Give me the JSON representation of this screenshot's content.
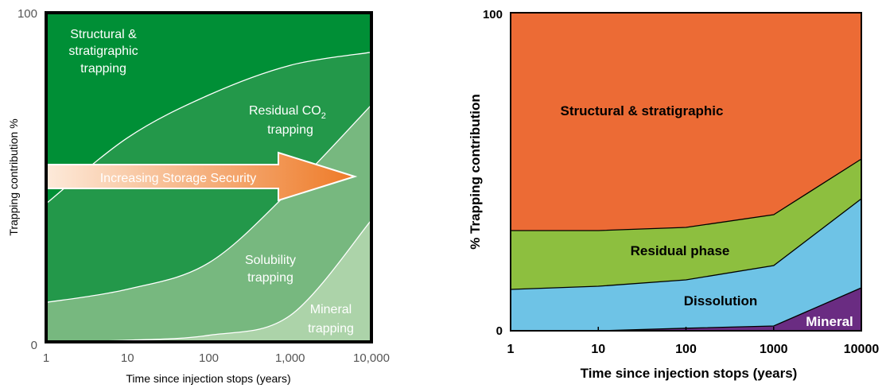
{
  "chart_data": [
    {
      "type": "area",
      "title": "",
      "xlabel": "Time since injection stops (years)",
      "ylabel": "Trapping contribution %",
      "x_scale": "log",
      "x": [
        1,
        10,
        100,
        1000,
        10000
      ],
      "xlim": [
        1,
        10000
      ],
      "ylim": [
        0,
        100
      ],
      "x_tick_labels": [
        "1",
        "10",
        "100",
        "1,000",
        "10,000"
      ],
      "y_tick_labels": [
        "0",
        "100"
      ],
      "stacking": "cumulative boundaries from bottom",
      "series": [
        {
          "name": "Mineral trapping",
          "label_lines": [
            "Mineral",
            "trapping"
          ],
          "x": [
            1,
            10,
            100,
            1000,
            10000
          ],
          "values": [
            0,
            0.5,
            2,
            8,
            37
          ]
        },
        {
          "name": "Solubility trapping",
          "label_lines": [
            "Solubility",
            "trapping"
          ],
          "x": [
            1,
            10,
            100,
            1000,
            10000
          ],
          "values": [
            12,
            16,
            24,
            46,
            72
          ]
        },
        {
          "name": "Residual CO2 trapping",
          "label_lines": [
            "Residual CO",
            "2",
            "trapping"
          ],
          "x": [
            1,
            10,
            100,
            1000,
            10000
          ],
          "values": [
            42,
            62,
            75,
            84,
            88
          ]
        },
        {
          "name": "Structural & stratigraphic trapping",
          "label_lines": [
            "Structural &",
            "stratigraphic",
            "trapping"
          ],
          "x": [
            1,
            10,
            100,
            1000,
            10000
          ],
          "values": [
            100,
            100,
            100,
            100,
            100
          ]
        }
      ],
      "annotation": "Increasing Storage Security",
      "colors": {
        "mineral": "#acd3a9",
        "solubility": "#77b87f",
        "residual": "#23984a",
        "structural": "#008f36",
        "frame": "#000000",
        "arrow_start": "#fdeada",
        "arrow_end": "#ee7a27"
      }
    },
    {
      "type": "area",
      "title": "",
      "xlabel": "Time since injection stops (years)",
      "ylabel": "% Trapping contribution",
      "x_scale": "log",
      "x": [
        1,
        10,
        100,
        1000,
        10000
      ],
      "xlim": [
        1,
        10000
      ],
      "ylim": [
        0,
        100
      ],
      "x_tick_labels": [
        "1",
        "10",
        "100",
        "1000",
        "10000"
      ],
      "y_tick_labels": [
        "0",
        "100"
      ],
      "stacking": "cumulative boundaries from bottom",
      "series": [
        {
          "name": "Mineral",
          "values": [
            0,
            0,
            0.8,
            1.5,
            13.5
          ]
        },
        {
          "name": "Dissolution",
          "values": [
            13,
            14,
            16,
            20.5,
            41.5
          ]
        },
        {
          "name": "Residual phase",
          "values": [
            31.5,
            31.5,
            32.5,
            36.5,
            54
          ]
        },
        {
          "name": "Structural & stratigraphic",
          "values": [
            100,
            100,
            100,
            100,
            100
          ]
        }
      ],
      "colors": {
        "mineral": "#6a2c82",
        "dissolution": "#6ec3e6",
        "residual": "#8dbf3f",
        "structural": "#ec6b35",
        "boundary": "#000000"
      }
    }
  ]
}
